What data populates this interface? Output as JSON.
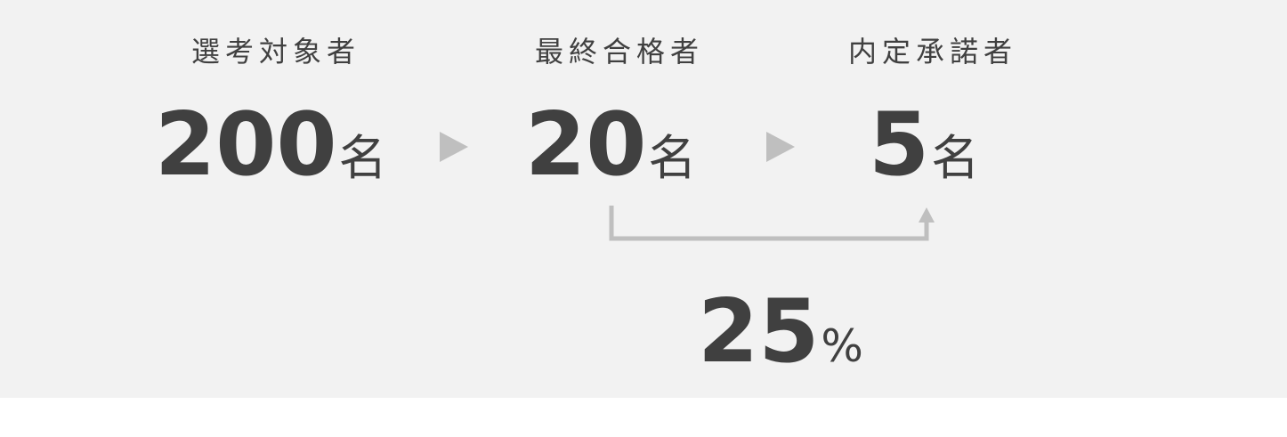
{
  "stages": [
    {
      "label": "選考対象者",
      "value": "200",
      "unit": "名"
    },
    {
      "label": "最終合格者",
      "value": "20",
      "unit": "名"
    },
    {
      "label": "内定承諾者",
      "value": "5",
      "unit": "名"
    }
  ],
  "acceptance_rate": {
    "value": "25",
    "unit": "%"
  },
  "colors": {
    "panel_background": "#f2f2f2",
    "text": "#404040",
    "arrow": "#bfbfbf"
  }
}
